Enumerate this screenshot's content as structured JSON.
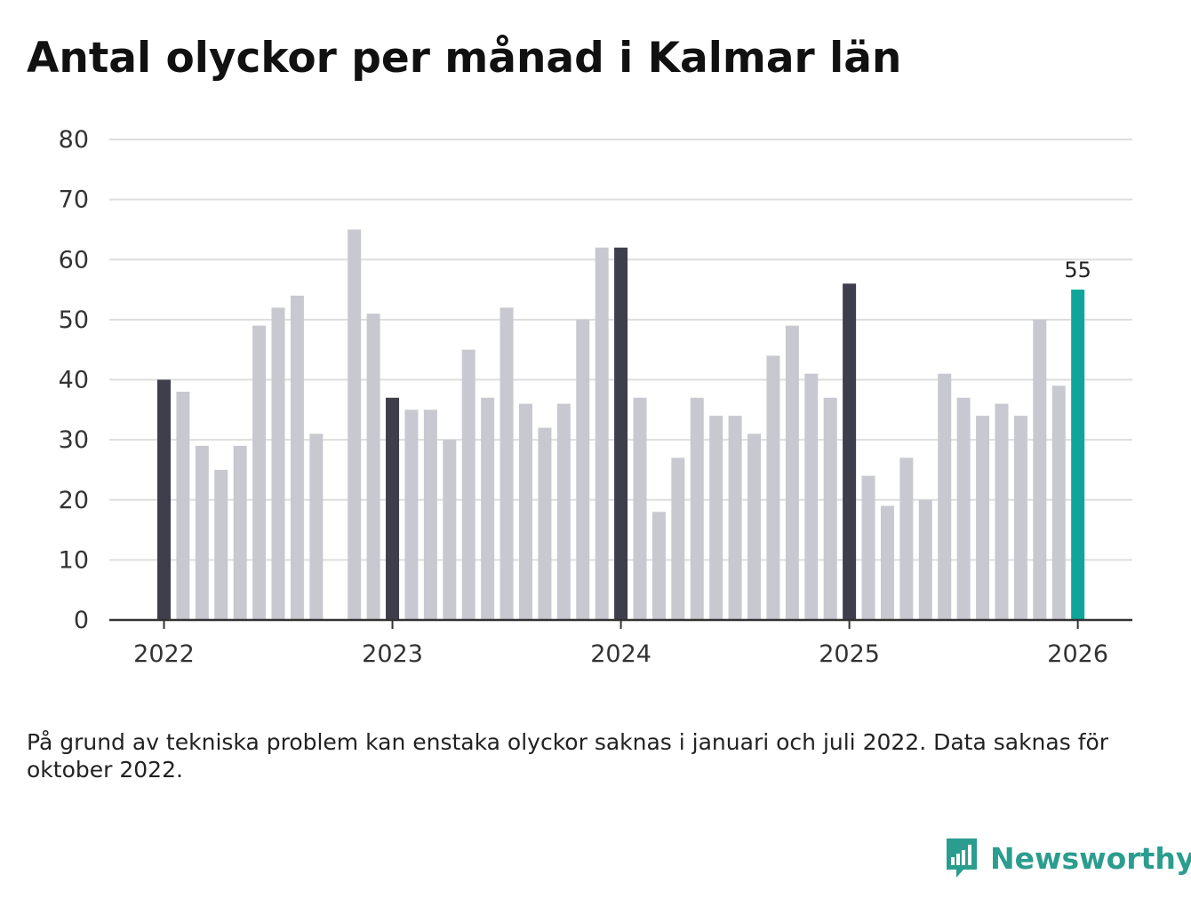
{
  "title": "Antal olyckor per månad i Kalmar län",
  "note": "På grund av tekniska problem kan enstaka olyckor saknas i januari och juli 2022. Data saknas för oktober 2022.",
  "brand": {
    "name": "Newsworthy",
    "logo_icon": "bar-chart-speech-bubble-icon"
  },
  "colors": {
    "default_bar": "#c8c8d0",
    "january_bar": "#3f3e4c",
    "latest_bar": "#0fa59a",
    "grid": "#dddddd",
    "axis": "#333333",
    "brand": "#2a9d8f"
  },
  "chart_data": {
    "type": "bar",
    "title": "Antal olyckor per månad i Kalmar län",
    "xlabel": "",
    "ylabel": "",
    "ylim": [
      0,
      80
    ],
    "yticks": [
      "0",
      "10",
      "20",
      "30",
      "40",
      "50",
      "60",
      "70",
      "80"
    ],
    "xticks": [
      "2022",
      "2023",
      "2024",
      "2025",
      "2026"
    ],
    "highlight": "January bars dark, latest month teal",
    "labeled_point": "55",
    "categories": [
      "2022-01",
      "2022-02",
      "2022-03",
      "2022-04",
      "2022-05",
      "2022-06",
      "2022-07",
      "2022-08",
      "2022-09",
      "2022-10",
      "2022-11",
      "2022-12",
      "2023-01",
      "2023-02",
      "2023-03",
      "2023-04",
      "2023-05",
      "2023-06",
      "2023-07",
      "2023-08",
      "2023-09",
      "2023-10",
      "2023-11",
      "2023-12",
      "2024-01",
      "2024-02",
      "2024-03",
      "2024-04",
      "2024-05",
      "2024-06",
      "2024-07",
      "2024-08",
      "2024-09",
      "2024-10",
      "2024-11",
      "2024-12",
      "2025-01",
      "2025-02",
      "2025-03",
      "2025-04",
      "2025-05",
      "2025-06",
      "2025-07",
      "2025-08",
      "2025-09",
      "2025-10",
      "2025-11",
      "2025-12",
      "2026-01"
    ],
    "values": [
      40,
      38,
      29,
      25,
      29,
      49,
      52,
      54,
      31,
      null,
      65,
      51,
      37,
      35,
      35,
      30,
      45,
      37,
      52,
      36,
      32,
      36,
      50,
      62,
      62,
      37,
      18,
      27,
      37,
      34,
      34,
      31,
      44,
      49,
      41,
      37,
      56,
      24,
      19,
      27,
      20,
      41,
      37,
      34,
      36,
      34,
      50,
      39,
      55
    ]
  }
}
